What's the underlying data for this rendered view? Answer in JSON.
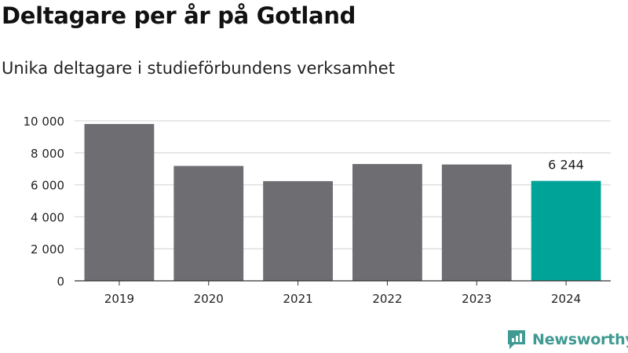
{
  "chart_data": {
    "type": "bar",
    "title": "Deltagare per år på Gotland",
    "subtitle": "Unika deltagare i studieförbundens verksamhet",
    "categories": [
      "2019",
      "2020",
      "2021",
      "2022",
      "2023",
      "2024"
    ],
    "values": [
      9800,
      7180,
      6230,
      7300,
      7270,
      6244
    ],
    "ylim": [
      0,
      10000
    ],
    "yticks": [
      0,
      2000,
      4000,
      6000,
      8000,
      10000
    ],
    "ytick_labels": [
      "0",
      "2 000",
      "4 000",
      "6 000",
      "8 000",
      "10 000"
    ],
    "data_labels": [
      {
        "category": "2024",
        "text": "6 244"
      }
    ],
    "highlight_category": "2024",
    "grid": true,
    "xlabel": "",
    "ylabel": "",
    "colors": {
      "bar": "#6e6d72",
      "highlight": "#00a398",
      "grid": "#dcdcdc",
      "axis": "#333333"
    }
  },
  "branding": {
    "name": "Newsworthy",
    "logo_icon": "newsworthy-logo-icon",
    "color": "#3f9a92"
  }
}
